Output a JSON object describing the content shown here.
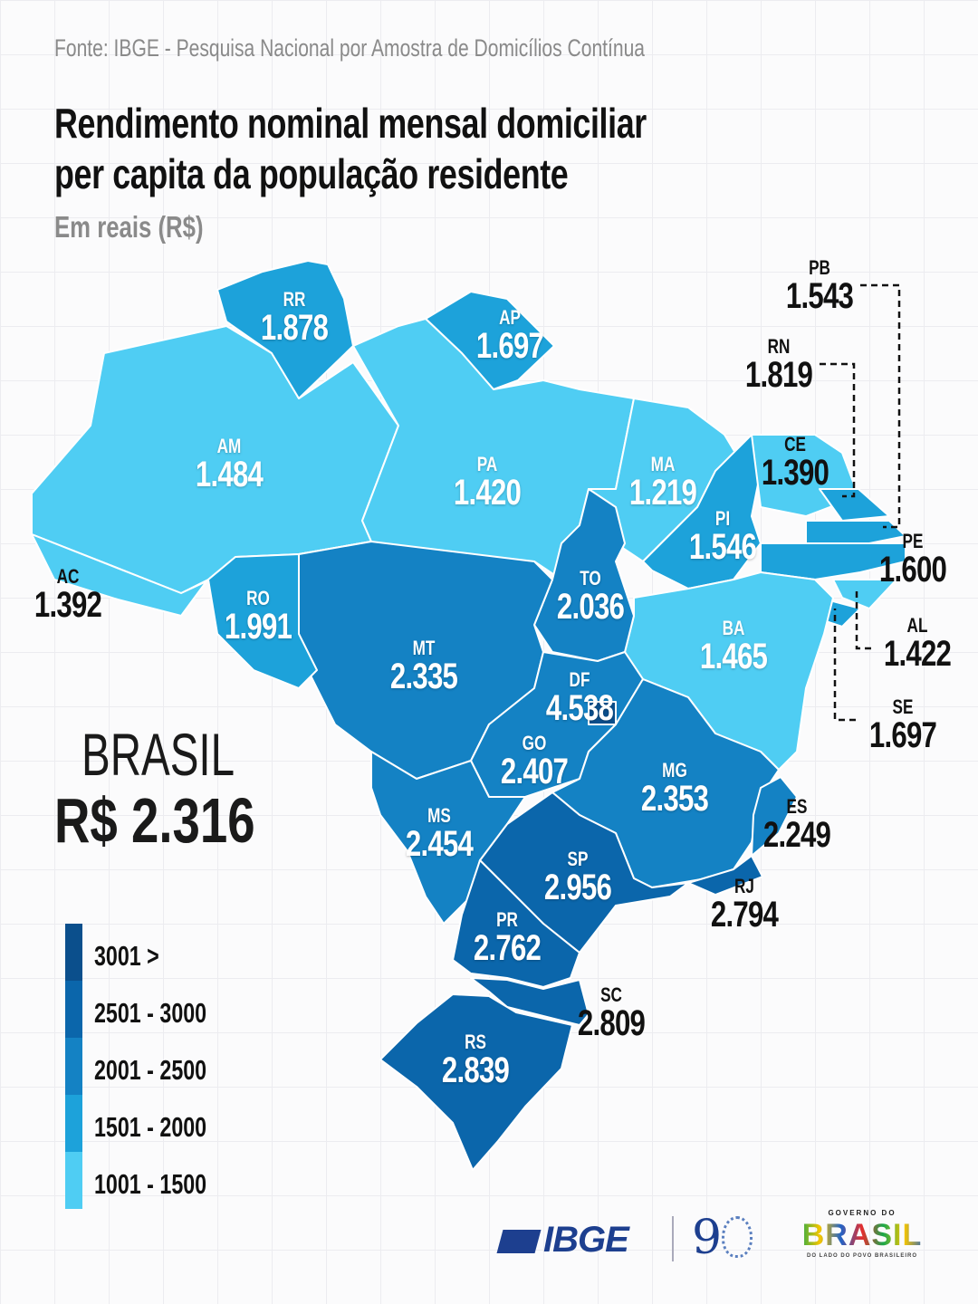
{
  "source": "Fonte: IBGE - Pesquisa Nacional por Amostra de Domicílios Contínua",
  "title_line1": "Rendimento nominal mensal domiciliar",
  "title_line2": "per capita da população residente",
  "subtitle": "Em reais (R$)",
  "national": {
    "label": "BRASIL",
    "value": "R$ 2.316"
  },
  "legend": [
    {
      "label": "3001 >",
      "min": 3001,
      "color": "#0b4f8c"
    },
    {
      "label": "2501 - 3000",
      "min": 2501,
      "max": 3000,
      "color": "#0b66ab"
    },
    {
      "label": "2001 - 2500",
      "min": 2001,
      "max": 2500,
      "color": "#1482c4"
    },
    {
      "label": "1501 - 2000",
      "min": 1501,
      "max": 2000,
      "color": "#1da2da"
    },
    {
      "label": "1001 - 1500",
      "min": 1001,
      "max": 1500,
      "color": "#4fcdf3"
    }
  ],
  "states": {
    "AC": {
      "abbr": "AC",
      "value": "1.392",
      "num": 1392
    },
    "AM": {
      "abbr": "AM",
      "value": "1.484",
      "num": 1484
    },
    "RR": {
      "abbr": "RR",
      "value": "1.878",
      "num": 1878
    },
    "AP": {
      "abbr": "AP",
      "value": "1.697",
      "num": 1697
    },
    "PA": {
      "abbr": "PA",
      "value": "1.420",
      "num": 1420
    },
    "MA": {
      "abbr": "MA",
      "value": "1.219",
      "num": 1219
    },
    "PI": {
      "abbr": "PI",
      "value": "1.546",
      "num": 1546
    },
    "CE": {
      "abbr": "CE",
      "value": "1.390",
      "num": 1390
    },
    "RN": {
      "abbr": "RN",
      "value": "1.819",
      "num": 1819
    },
    "PB": {
      "abbr": "PB",
      "value": "1.543",
      "num": 1543
    },
    "PE": {
      "abbr": "PE",
      "value": "1.600",
      "num": 1600
    },
    "AL": {
      "abbr": "AL",
      "value": "1.422",
      "num": 1422
    },
    "SE": {
      "abbr": "SE",
      "value": "1.697",
      "num": 1697
    },
    "BA": {
      "abbr": "BA",
      "value": "1.465",
      "num": 1465
    },
    "TO": {
      "abbr": "TO",
      "value": "2.036",
      "num": 2036
    },
    "RO": {
      "abbr": "RO",
      "value": "1.991",
      "num": 1991
    },
    "MT": {
      "abbr": "MT",
      "value": "2.335",
      "num": 2335
    },
    "DF": {
      "abbr": "DF",
      "value": "4.538",
      "num": 4538
    },
    "GO": {
      "abbr": "GO",
      "value": "2.407",
      "num": 2407
    },
    "MG": {
      "abbr": "MG",
      "value": "2.353",
      "num": 2353
    },
    "ES": {
      "abbr": "ES",
      "value": "2.249",
      "num": 2249
    },
    "RJ": {
      "abbr": "RJ",
      "value": "2.794",
      "num": 2794
    },
    "SP": {
      "abbr": "SP",
      "value": "2.956",
      "num": 2956
    },
    "MS": {
      "abbr": "MS",
      "value": "2.454",
      "num": 2454
    },
    "PR": {
      "abbr": "PR",
      "value": "2.762",
      "num": 2762
    },
    "SC": {
      "abbr": "SC",
      "value": "2.809",
      "num": 2809
    },
    "RS": {
      "abbr": "RS",
      "value": "2.839",
      "num": 2839
    }
  },
  "logos": {
    "ibge": "IBGE",
    "ninety": "9",
    "gov_top": "GOVERNO DO",
    "gov_word": "BRASIL",
    "gov_bottom": "DO LADO DO POVO BRASILEIRO"
  }
}
